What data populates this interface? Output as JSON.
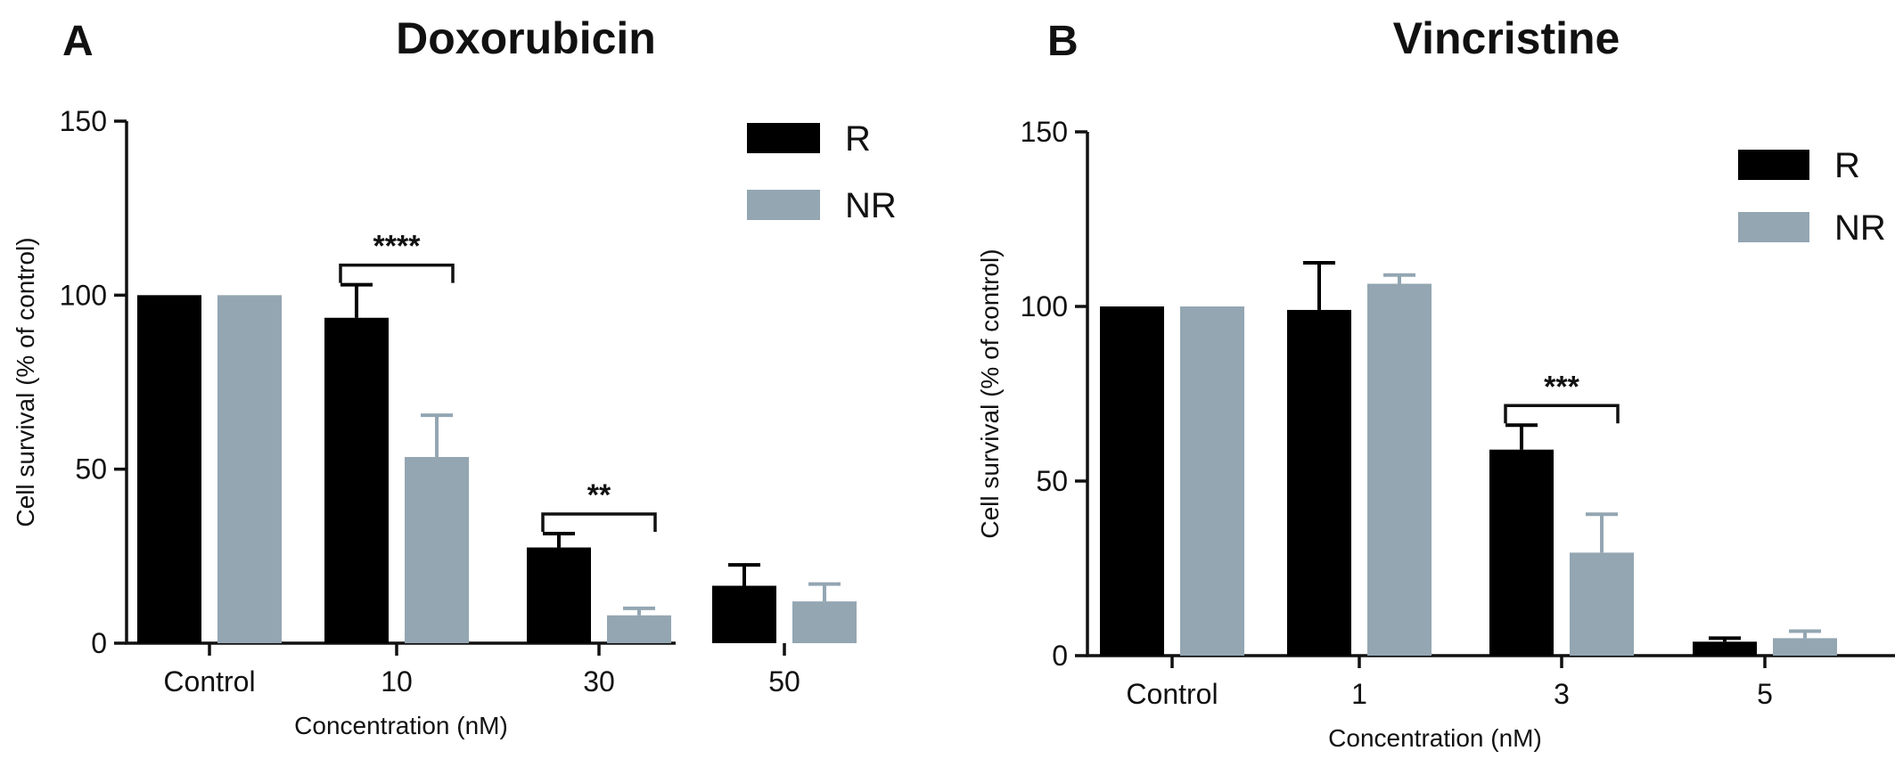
{
  "chart_data": [
    {
      "type": "bar",
      "panel_label": "A",
      "title": "Doxorubicin",
      "xlabel": "Concentration  (nM)",
      "ylabel": "Cell  survival (% of control)",
      "categories": [
        "Control",
        "10",
        "30",
        "50"
      ],
      "ylim": [
        0,
        150
      ],
      "yticks": [
        0,
        50,
        100,
        150
      ],
      "legend_position": "top-right",
      "series": [
        {
          "name": "R",
          "color": "#000000",
          "values": [
            100,
            93.5,
            27.5,
            16.5
          ],
          "errors": [
            0,
            9.5,
            4,
            6
          ]
        },
        {
          "name": "NR",
          "color": "#93a6b2",
          "values": [
            100,
            53.5,
            8,
            12
          ],
          "errors": [
            0,
            12,
            2,
            5
          ]
        }
      ],
      "significance": [
        {
          "category_index": 1,
          "label": "****"
        },
        {
          "category_index": 2,
          "label": "**"
        }
      ]
    },
    {
      "type": "bar",
      "panel_label": "B",
      "title": "Vincristine",
      "xlabel": "Concentration  (nM)",
      "ylabel": "Cell  survival (% of control)",
      "categories": [
        "Control",
        "1",
        "3",
        "5"
      ],
      "ylim": [
        0,
        150
      ],
      "yticks": [
        0,
        50,
        100,
        150
      ],
      "legend_position": "top-right",
      "series": [
        {
          "name": "R",
          "color": "#000000",
          "values": [
            100,
            99,
            59,
            4
          ],
          "errors": [
            0,
            13.5,
            7,
            1
          ]
        },
        {
          "name": "NR",
          "color": "#93a6b2",
          "values": [
            100,
            106.5,
            29.5,
            5
          ],
          "errors": [
            0,
            2.5,
            11,
            2
          ]
        }
      ],
      "significance": [
        {
          "category_index": 2,
          "label": "***"
        }
      ]
    }
  ]
}
